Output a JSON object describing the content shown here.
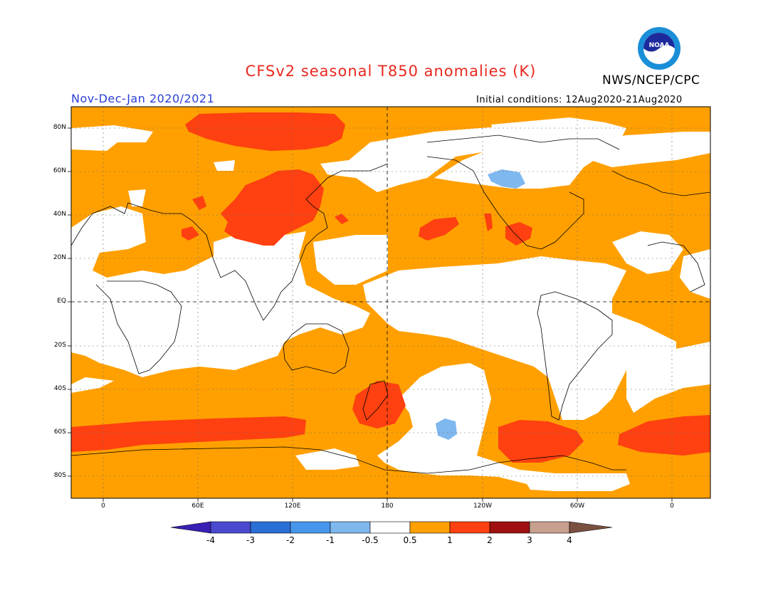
{
  "title": "CFSv2 seasonal T850 anomalies (K)",
  "organization": "NWS/NCEP/CPC",
  "logo_text": "NOAA",
  "period": "Nov-Dec-Jan 2020/2021",
  "initial_conditions": "Initial conditions: 12Aug2020-21Aug2020",
  "latitude_labels": [
    "80N",
    "60N",
    "40N",
    "20N",
    "EQ",
    "20S",
    "40S",
    "60S",
    "80S"
  ],
  "longitude_labels": [
    "0",
    "60E",
    "120E",
    "180",
    "120W",
    "60W",
    "0"
  ],
  "colorbar": {
    "labels": [
      "-4",
      "-3",
      "-2",
      "-1",
      "-0.5",
      "0.5",
      "1",
      "2",
      "3",
      "4"
    ],
    "colors": [
      "#3a1fb4",
      "#4a4ad0",
      "#2a6fd6",
      "#4896ec",
      "#7fb8ee",
      "#ffffff",
      "#ffa000",
      "#ff4010",
      "#a01010",
      "#c8a090",
      "#7a5040"
    ]
  },
  "map_colors": {
    "near_normal": "#ffffff",
    "warm_0_5_1": "#ffa000",
    "warm_1_2": "#ff4010",
    "cool_0_5_1": "#7fb8ee"
  }
}
